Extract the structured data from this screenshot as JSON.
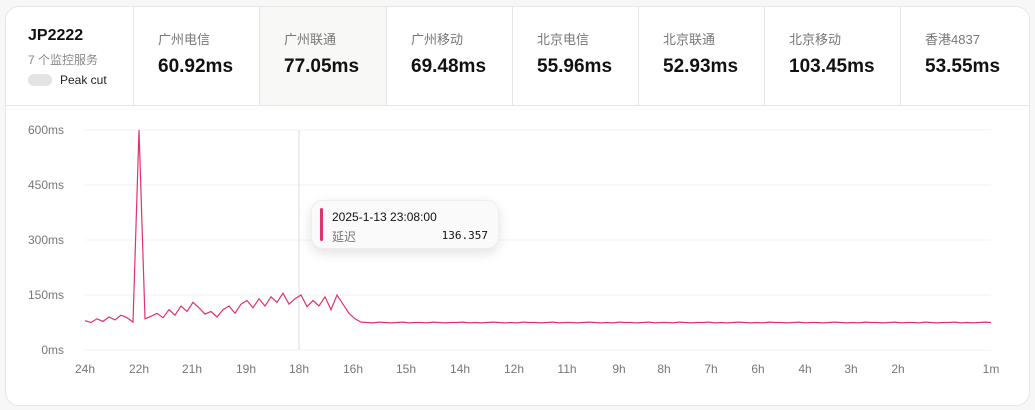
{
  "server": {
    "name": "JP2222",
    "subtitle": "7 个监控服务",
    "toggle_label": "Peak cut",
    "toggle_on": false
  },
  "services": [
    {
      "label": "广州电信",
      "value": "60.92ms"
    },
    {
      "label": "广州联通",
      "value": "77.05ms",
      "active": true
    },
    {
      "label": "广州移动",
      "value": "69.48ms"
    },
    {
      "label": "北京电信",
      "value": "55.96ms"
    },
    {
      "label": "北京联通",
      "value": "52.93ms"
    },
    {
      "label": "北京移动",
      "value": "103.45ms"
    },
    {
      "label": "香港4837",
      "value": "53.55ms"
    }
  ],
  "tooltip": {
    "time": "2025-1-13 23:08:00",
    "label": "延迟",
    "value": "136.357"
  },
  "colors": {
    "line": "#e0336e"
  },
  "chart_data": {
    "type": "line",
    "grid": true,
    "ylim": [
      0,
      600
    ],
    "yticks": [
      "0ms",
      "150ms",
      "300ms",
      "450ms",
      "600ms"
    ],
    "xticks": [
      "24h",
      "22h",
      "21h",
      "19h",
      "18h",
      "16h",
      "15h",
      "14h",
      "12h",
      "11h",
      "9h",
      "8h",
      "7h",
      "6h",
      "4h",
      "3h",
      "2h",
      "1m"
    ],
    "series": [
      {
        "values": [
          80,
          75,
          85,
          78,
          90,
          82,
          95,
          88,
          76,
          600,
          85,
          92,
          100,
          88,
          110,
          95,
          120,
          105,
          130,
          115,
          98,
          105,
          90,
          110,
          120,
          100,
          125,
          135,
          115,
          140,
          120,
          145,
          130,
          155,
          125,
          140,
          150,
          118,
          135,
          120,
          145,
          110,
          150,
          125,
          100,
          85,
          76,
          75,
          74,
          76,
          75,
          74,
          75,
          76,
          74,
          75,
          75,
          74,
          76,
          75,
          74,
          75,
          75,
          76,
          74,
          75,
          74,
          75,
          76,
          75,
          74,
          75,
          74,
          76,
          75,
          75,
          74,
          75,
          76,
          74,
          75,
          75,
          74,
          75,
          76,
          75,
          74,
          75,
          74,
          76,
          75,
          75,
          74,
          75,
          76,
          74,
          75,
          75,
          74,
          76,
          75,
          74,
          75,
          75,
          76,
          74,
          75,
          74,
          75,
          76,
          75,
          74,
          75,
          74,
          76,
          75,
          75,
          74,
          75,
          76,
          74,
          75,
          75,
          74,
          75,
          76,
          75,
          74,
          75,
          74,
          76,
          75,
          75,
          74,
          75,
          76,
          74,
          75,
          75,
          74,
          76,
          75,
          74,
          75,
          75,
          76,
          74,
          75,
          74,
          75,
          76,
          75
        ]
      }
    ]
  }
}
